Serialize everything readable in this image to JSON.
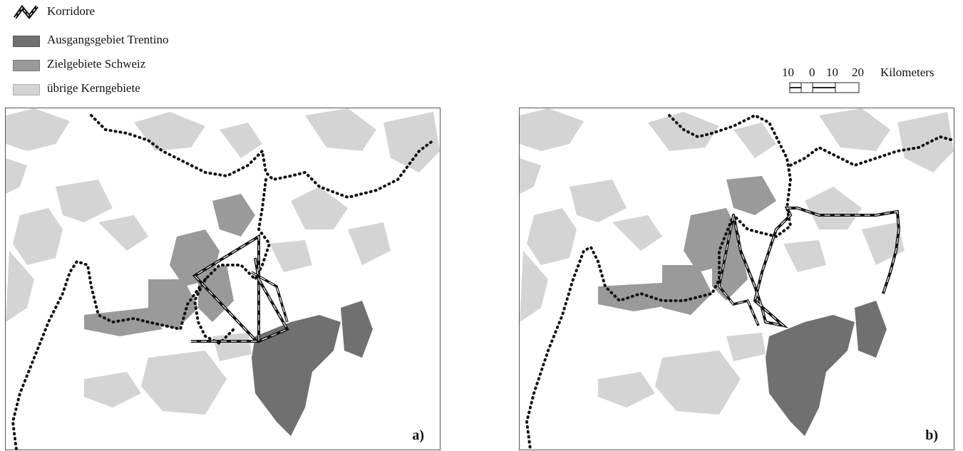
{
  "legend": {
    "corridors": "Korridore",
    "origin": "Ausgangsgebiet Trentino",
    "target": "Zielgebiete Schweiz",
    "other": "übrige Kerngebiete"
  },
  "scale": {
    "tick_10_left": "10",
    "tick_0": "0",
    "tick_10": "10",
    "tick_20": "20",
    "unit": "Kilometers"
  },
  "panels": {
    "a": "a)",
    "b": "b)"
  },
  "colors": {
    "origin": "#707070",
    "target": "#9a9a9a",
    "other": "#d4d4d4",
    "border_line": "#111111",
    "corridor": "#111111"
  }
}
